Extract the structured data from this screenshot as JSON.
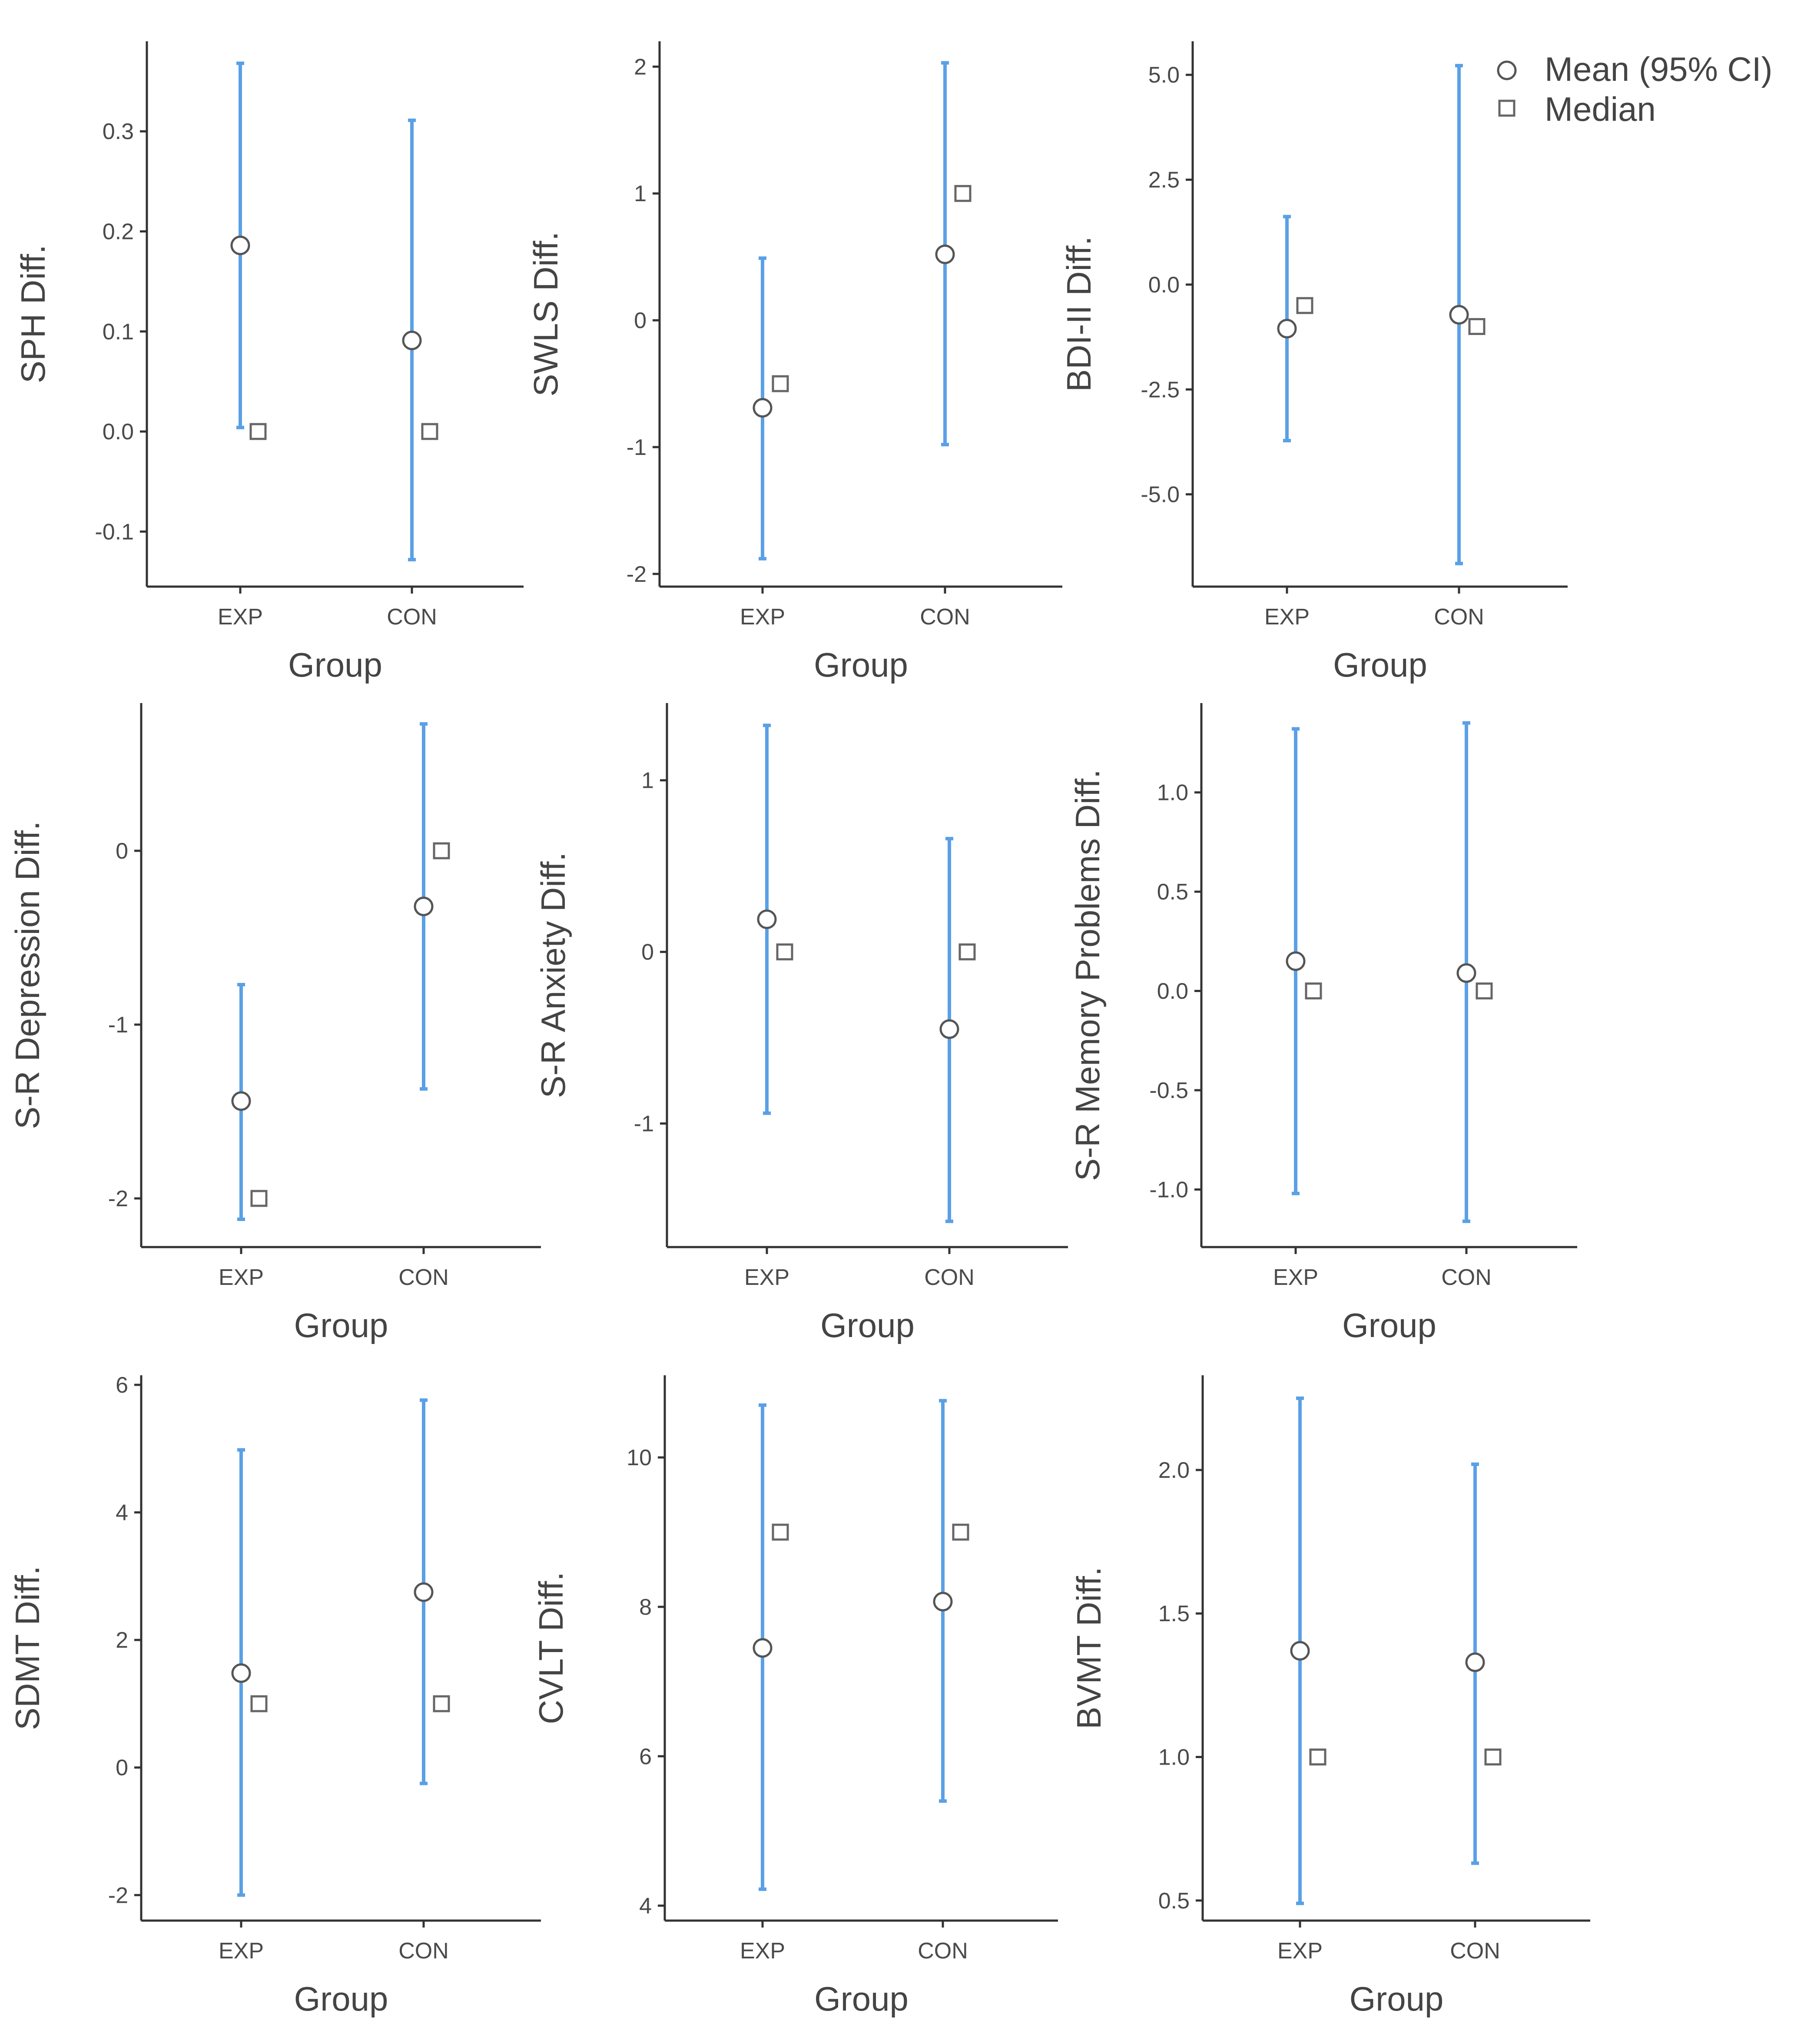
{
  "colors": {
    "ci": "#5aa0e6",
    "axis": "#333333",
    "marker_stroke": "#555555",
    "median_stroke": "#666666"
  },
  "legend": {
    "mean_label": "Mean (95% CI)",
    "median_label": "Median",
    "placement": "top-right"
  },
  "chart_data": [
    {
      "type": "errorbar",
      "title": "",
      "xlabel": "Group",
      "ylabel": "SPH Diff.",
      "categories": [
        "EXP",
        "CON"
      ],
      "ylim": [
        -0.155,
        0.39
      ],
      "yticks": [
        -0.1,
        0.0,
        0.1,
        0.2,
        0.3
      ],
      "yticklabels": [
        "-0.1",
        "0.0",
        "0.1",
        "0.2",
        "0.3"
      ],
      "mean": [
        0.186,
        0.091
      ],
      "ci_lower": [
        0.004,
        -0.128
      ],
      "ci_upper": [
        0.368,
        0.311
      ],
      "median": [
        0.0,
        0.0
      ]
    },
    {
      "type": "errorbar",
      "title": "",
      "xlabel": "Group",
      "ylabel": "SWLS Diff.",
      "categories": [
        "EXP",
        "CON"
      ],
      "ylim": [
        -2.1,
        2.2
      ],
      "yticks": [
        -2,
        -1,
        0,
        1,
        2
      ],
      "yticklabels": [
        "-2",
        "-1",
        "0",
        "1",
        "2"
      ],
      "mean": [
        -0.69,
        0.52
      ],
      "ci_lower": [
        -1.88,
        -0.98
      ],
      "ci_upper": [
        0.49,
        2.03
      ],
      "median": [
        -0.5,
        1.0
      ]
    },
    {
      "type": "errorbar",
      "title": "",
      "xlabel": "Group",
      "ylabel": "BDI-II Diff.",
      "categories": [
        "EXP",
        "CON"
      ],
      "ylim": [
        -7.2,
        5.8
      ],
      "yticks": [
        -5.0,
        -2.5,
        0.0,
        2.5,
        5.0
      ],
      "yticklabels": [
        "-5.0",
        "-2.5",
        "0.0",
        "2.5",
        "5.0"
      ],
      "mean": [
        -1.05,
        -0.72
      ],
      "ci_lower": [
        -3.72,
        -6.65
      ],
      "ci_upper": [
        1.62,
        5.22
      ],
      "median": [
        -0.5,
        -1.0
      ]
    },
    {
      "type": "errorbar",
      "title": "",
      "xlabel": "Group",
      "ylabel": "S-R Depression Diff.",
      "categories": [
        "EXP",
        "CON"
      ],
      "ylim": [
        -2.28,
        0.85
      ],
      "yticks": [
        -2,
        -1,
        0
      ],
      "yticklabels": [
        "-2",
        "-1",
        "0"
      ],
      "mean": [
        -1.44,
        -0.32
      ],
      "ci_lower": [
        -2.12,
        -1.37
      ],
      "ci_upper": [
        -0.77,
        0.73
      ],
      "median": [
        -2.0,
        0.0
      ]
    },
    {
      "type": "errorbar",
      "title": "",
      "xlabel": "Group",
      "ylabel": "S-R Anxiety Diff.",
      "categories": [
        "EXP",
        "CON"
      ],
      "ylim": [
        -1.72,
        1.45
      ],
      "yticks": [
        -1,
        0,
        1
      ],
      "yticklabels": [
        "-1",
        "0",
        "1"
      ],
      "mean": [
        0.19,
        -0.45
      ],
      "ci_lower": [
        -0.94,
        -1.57
      ],
      "ci_upper": [
        1.32,
        0.66
      ],
      "median": [
        0.0,
        0.0
      ]
    },
    {
      "type": "errorbar",
      "title": "",
      "xlabel": "Group",
      "ylabel": "S-R Memory Problems Diff.",
      "categories": [
        "EXP",
        "CON"
      ],
      "ylim": [
        -1.29,
        1.45
      ],
      "yticks": [
        -1.0,
        -0.5,
        0.0,
        0.5,
        1.0
      ],
      "yticklabels": [
        "-1.0",
        "-0.5",
        "0.0",
        "0.5",
        "1.0"
      ],
      "mean": [
        0.15,
        0.09
      ],
      "ci_lower": [
        -1.02,
        -1.16
      ],
      "ci_upper": [
        1.32,
        1.35
      ],
      "median": [
        0.0,
        0.0
      ]
    },
    {
      "type": "errorbar",
      "title": "",
      "xlabel": "Group",
      "ylabel": "SDMT Diff.",
      "categories": [
        "EXP",
        "CON"
      ],
      "ylim": [
        -2.4,
        6.15
      ],
      "yticks": [
        -2,
        0,
        2,
        4,
        6
      ],
      "yticklabels": [
        "-2",
        "0",
        "2",
        "4",
        "6"
      ],
      "mean": [
        1.48,
        2.75
      ],
      "ci_lower": [
        -2.0,
        -0.25
      ],
      "ci_upper": [
        4.98,
        5.76
      ],
      "median": [
        1.0,
        1.0
      ]
    },
    {
      "type": "errorbar",
      "title": "",
      "xlabel": "Group",
      "ylabel": "CVLT Diff.",
      "categories": [
        "EXP",
        "CON"
      ],
      "ylim": [
        3.8,
        11.1
      ],
      "yticks": [
        4,
        6,
        8,
        10
      ],
      "yticklabels": [
        "4",
        "6",
        "8",
        "10"
      ],
      "mean": [
        7.45,
        8.07
      ],
      "ci_lower": [
        4.22,
        5.4
      ],
      "ci_upper": [
        10.7,
        10.76
      ],
      "median": [
        9.0,
        9.0
      ]
    },
    {
      "type": "errorbar",
      "title": "",
      "xlabel": "Group",
      "ylabel": "BVMT Diff.",
      "categories": [
        "EXP",
        "CON"
      ],
      "ylim": [
        0.43,
        2.33
      ],
      "yticks": [
        0.5,
        1.0,
        1.5,
        2.0
      ],
      "yticklabels": [
        "0.5",
        "1.0",
        "1.5",
        "2.0"
      ],
      "mean": [
        1.37,
        1.33
      ],
      "ci_lower": [
        0.49,
        0.63
      ],
      "ci_upper": [
        2.25,
        2.02
      ],
      "median": [
        1.0,
        1.0
      ]
    }
  ]
}
